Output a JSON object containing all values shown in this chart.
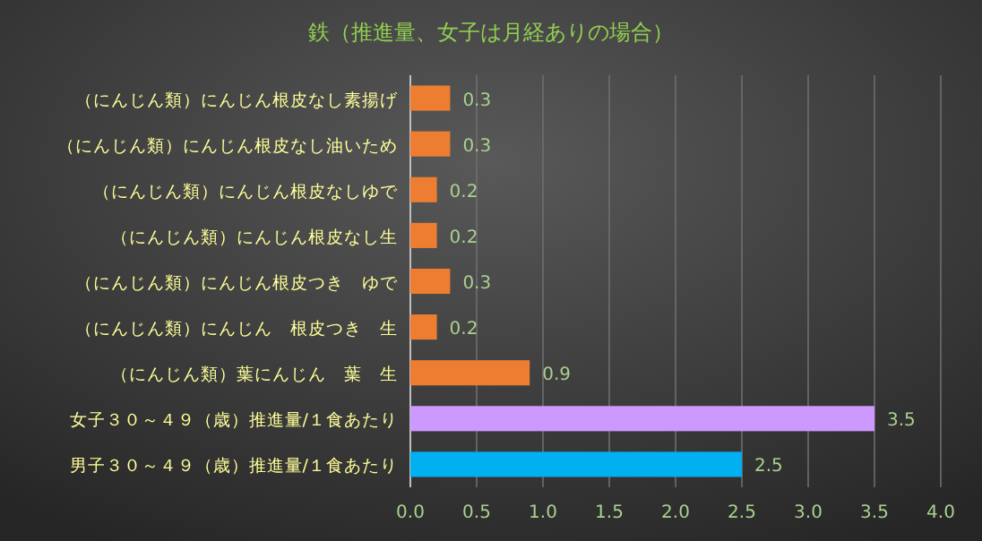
{
  "chart_data": {
    "type": "bar",
    "orientation": "horizontal",
    "title": "鉄（推進量、女子は月経ありの場合）",
    "categories": [
      "（にんじん類）にんじん根皮なし素揚げ",
      "（にんじん類）にんじん根皮なし油いため",
      "（にんじん類）にんじん根皮なしゆで",
      "（にんじん類）にんじん根皮なし生",
      "（にんじん類）にんじん根皮つき　ゆで",
      "（にんじん類）にんじん　根皮つき　生",
      "（にんじん類）葉にんじん　葉　生",
      "女子３０～４９（歳）推進量/１食あたり",
      "男子３０～４９（歳）推進量/１食あたり"
    ],
    "values": [
      0.3,
      0.3,
      0.2,
      0.2,
      0.3,
      0.2,
      0.9,
      3.5,
      2.5
    ],
    "colors": [
      "#ed7d31",
      "#ed7d31",
      "#ed7d31",
      "#ed7d31",
      "#ed7d31",
      "#ed7d31",
      "#ed7d31",
      "#cc99ff",
      "#00b0f0"
    ],
    "xlim": [
      0,
      4
    ],
    "xticks": [
      {
        "value": 0,
        "label": "0.0"
      },
      {
        "value": 0.5,
        "label": "0.5"
      },
      {
        "value": 1,
        "label": "1.0"
      },
      {
        "value": 1.5,
        "label": "1.5"
      },
      {
        "value": 2,
        "label": "2.0"
      },
      {
        "value": 2.5,
        "label": "2.5"
      },
      {
        "value": 3,
        "label": "3.0"
      },
      {
        "value": 3.5,
        "label": "3.5"
      },
      {
        "value": 4,
        "label": "4.0"
      }
    ],
    "grid": "x",
    "data_labels": true
  }
}
